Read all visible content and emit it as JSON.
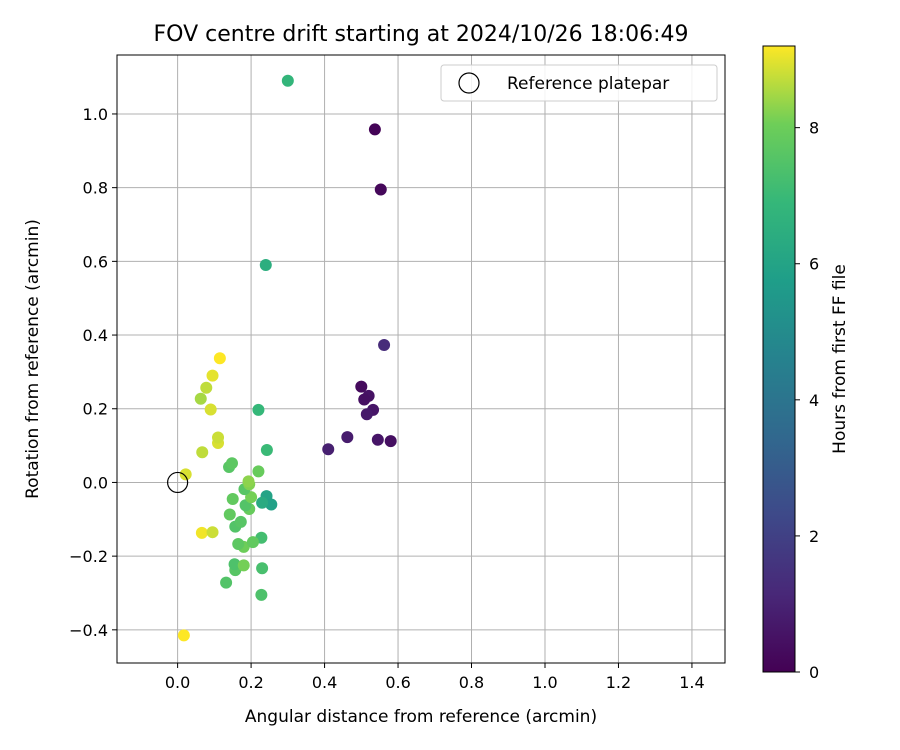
{
  "chart_data": {
    "type": "scatter",
    "title": "FOV centre drift starting at 2024/10/26 18:06:49",
    "xlabel": "Angular distance from reference (arcmin)",
    "ylabel": "Rotation from reference (arcmin)",
    "xlim": [
      -0.165,
      1.49
    ],
    "ylim": [
      -0.49,
      1.16
    ],
    "xticks": [
      0.0,
      0.2,
      0.4,
      0.6,
      0.8,
      1.0,
      1.2,
      1.4
    ],
    "yticks": [
      -0.4,
      -0.2,
      0.0,
      0.2,
      0.4,
      0.6,
      0.8,
      1.0
    ],
    "xtick_labels": [
      "0.0",
      "0.2",
      "0.4",
      "0.6",
      "0.8",
      "1.0",
      "1.2",
      "1.4"
    ],
    "ytick_labels": [
      "−0.4",
      "−0.2",
      "0.0",
      "0.2",
      "0.4",
      "0.6",
      "0.8",
      "1.0"
    ],
    "grid": true,
    "legend": {
      "placement": "top-right",
      "entries": [
        "Reference platepar"
      ]
    },
    "reference_point": {
      "x": 0.0,
      "y": 0.0,
      "label": "Reference platepar"
    },
    "colorbar": {
      "label": "Hours from first FF file",
      "min": 0,
      "max": 9.2,
      "ticks": [
        0,
        2,
        4,
        6,
        8
      ],
      "tick_labels": [
        "0",
        "2",
        "4",
        "6",
        "8"
      ],
      "colormap": "viridis"
    },
    "points": [
      {
        "x": 0.537,
        "y": 0.958,
        "h": 0.1
      },
      {
        "x": 0.553,
        "y": 0.795,
        "h": 0.2
      },
      {
        "x": 0.562,
        "y": 0.373,
        "h": 1.3
      },
      {
        "x": 0.5,
        "y": 0.26,
        "h": 0.3
      },
      {
        "x": 0.52,
        "y": 0.235,
        "h": 0.5
      },
      {
        "x": 0.508,
        "y": 0.225,
        "h": 0.4
      },
      {
        "x": 0.532,
        "y": 0.197,
        "h": 0.6
      },
      {
        "x": 0.515,
        "y": 0.185,
        "h": 0.7
      },
      {
        "x": 0.462,
        "y": 0.123,
        "h": 0.8
      },
      {
        "x": 0.545,
        "y": 0.116,
        "h": 0.6
      },
      {
        "x": 0.58,
        "y": 0.112,
        "h": 0.4
      },
      {
        "x": 0.41,
        "y": 0.09,
        "h": 0.9
      },
      {
        "x": 0.3,
        "y": 1.09,
        "h": 6.8
      },
      {
        "x": 0.24,
        "y": 0.59,
        "h": 6.5
      },
      {
        "x": 0.22,
        "y": 0.197,
        "h": 6.9
      },
      {
        "x": 0.243,
        "y": 0.088,
        "h": 7.0
      },
      {
        "x": 0.242,
        "y": -0.037,
        "h": 6.0
      },
      {
        "x": 0.255,
        "y": -0.06,
        "h": 5.9
      },
      {
        "x": 0.23,
        "y": -0.055,
        "h": 6.3
      },
      {
        "x": 0.228,
        "y": -0.15,
        "h": 7.2
      },
      {
        "x": 0.23,
        "y": -0.233,
        "h": 7.3
      },
      {
        "x": 0.228,
        "y": -0.305,
        "h": 7.4
      },
      {
        "x": 0.132,
        "y": -0.272,
        "h": 7.5
      },
      {
        "x": 0.157,
        "y": -0.238,
        "h": 7.6
      },
      {
        "x": 0.155,
        "y": -0.222,
        "h": 7.4
      },
      {
        "x": 0.18,
        "y": -0.225,
        "h": 8.1
      },
      {
        "x": 0.18,
        "y": -0.175,
        "h": 8.0
      },
      {
        "x": 0.165,
        "y": -0.167,
        "h": 7.7
      },
      {
        "x": 0.205,
        "y": -0.162,
        "h": 7.8
      },
      {
        "x": 0.157,
        "y": -0.12,
        "h": 7.5
      },
      {
        "x": 0.172,
        "y": -0.107,
        "h": 7.6
      },
      {
        "x": 0.142,
        "y": -0.087,
        "h": 7.8
      },
      {
        "x": 0.195,
        "y": -0.072,
        "h": 7.9
      },
      {
        "x": 0.185,
        "y": -0.062,
        "h": 7.5
      },
      {
        "x": 0.15,
        "y": -0.045,
        "h": 7.8
      },
      {
        "x": 0.2,
        "y": -0.04,
        "h": 8.1
      },
      {
        "x": 0.182,
        "y": -0.018,
        "h": 7.6
      },
      {
        "x": 0.195,
        "y": -0.005,
        "h": 8.2
      },
      {
        "x": 0.193,
        "y": 0.003,
        "h": 8.3
      },
      {
        "x": 0.22,
        "y": 0.03,
        "h": 7.9
      },
      {
        "x": 0.14,
        "y": 0.042,
        "h": 7.6
      },
      {
        "x": 0.148,
        "y": 0.052,
        "h": 7.7
      },
      {
        "x": 0.022,
        "y": 0.022,
        "h": 8.9
      },
      {
        "x": 0.067,
        "y": 0.082,
        "h": 8.7
      },
      {
        "x": 0.11,
        "y": 0.107,
        "h": 8.9
      },
      {
        "x": 0.11,
        "y": 0.122,
        "h": 8.8
      },
      {
        "x": 0.09,
        "y": 0.198,
        "h": 8.9
      },
      {
        "x": 0.063,
        "y": 0.227,
        "h": 8.5
      },
      {
        "x": 0.078,
        "y": 0.257,
        "h": 8.7
      },
      {
        "x": 0.095,
        "y": 0.29,
        "h": 9.0
      },
      {
        "x": 0.115,
        "y": 0.337,
        "h": 9.2
      },
      {
        "x": 0.066,
        "y": -0.137,
        "h": 9.1
      },
      {
        "x": 0.095,
        "y": -0.135,
        "h": 8.8
      },
      {
        "x": 0.017,
        "y": -0.415,
        "h": 9.2
      }
    ]
  }
}
